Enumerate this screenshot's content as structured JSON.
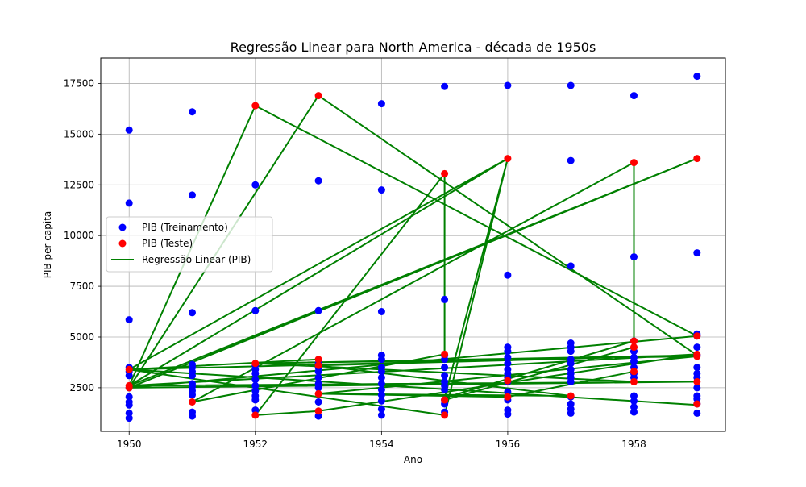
{
  "chart_data": {
    "type": "scatter",
    "title": "Regressão Linear para North America - década de 1950s",
    "xlabel": "Ano",
    "ylabel": "PIB per capita",
    "xlim": [
      1949.55,
      1959.45
    ],
    "ylim": [
      350,
      18750
    ],
    "xticks": [
      1950,
      1952,
      1954,
      1956,
      1958
    ],
    "yticks": [
      2500,
      5000,
      7500,
      10000,
      12500,
      15000,
      17500
    ],
    "grid": true,
    "legend_position": "center-left",
    "colors": {
      "train": "#0000ff",
      "test": "#ff0000",
      "regression": "#008000"
    },
    "series": [
      {
        "name": "PIB (Treinamento)",
        "kind": "scatter",
        "points": [
          [
            1950,
            15200
          ],
          [
            1950,
            11600
          ],
          [
            1950,
            5850
          ],
          [
            1950,
            3500
          ],
          [
            1950,
            3300
          ],
          [
            1950,
            3100
          ],
          [
            1950,
            2500
          ],
          [
            1950,
            2050
          ],
          [
            1950,
            1800
          ],
          [
            1950,
            1650
          ],
          [
            1950,
            1250
          ],
          [
            1950,
            1000
          ],
          [
            1951,
            16100
          ],
          [
            1951,
            12000
          ],
          [
            1951,
            6200
          ],
          [
            1951,
            3650
          ],
          [
            1951,
            3500
          ],
          [
            1951,
            3300
          ],
          [
            1951,
            3100
          ],
          [
            1951,
            2700
          ],
          [
            1951,
            2550
          ],
          [
            1951,
            2350
          ],
          [
            1951,
            2150
          ],
          [
            1951,
            1300
          ],
          [
            1951,
            1100
          ],
          [
            1952,
            12500
          ],
          [
            1952,
            6300
          ],
          [
            1952,
            3600
          ],
          [
            1952,
            3400
          ],
          [
            1952,
            3200
          ],
          [
            1952,
            2900
          ],
          [
            1952,
            2600
          ],
          [
            1952,
            2350
          ],
          [
            1952,
            2100
          ],
          [
            1952,
            1900
          ],
          [
            1952,
            1400
          ],
          [
            1953,
            12700
          ],
          [
            1953,
            6300
          ],
          [
            1953,
            3700
          ],
          [
            1953,
            3500
          ],
          [
            1953,
            3300
          ],
          [
            1953,
            3000
          ],
          [
            1953,
            2700
          ],
          [
            1953,
            2500
          ],
          [
            1953,
            1800
          ],
          [
            1953,
            1100
          ],
          [
            1954,
            16500
          ],
          [
            1954,
            12250
          ],
          [
            1954,
            6250
          ],
          [
            1954,
            4100
          ],
          [
            1954,
            3900
          ],
          [
            1954,
            3500
          ],
          [
            1954,
            3300
          ],
          [
            1954,
            3000
          ],
          [
            1954,
            2700
          ],
          [
            1954,
            2400
          ],
          [
            1954,
            2150
          ],
          [
            1954,
            1850
          ],
          [
            1954,
            1450
          ],
          [
            1954,
            1150
          ],
          [
            1955,
            17350
          ],
          [
            1955,
            6850
          ],
          [
            1955,
            4100
          ],
          [
            1955,
            3900
          ],
          [
            1955,
            3500
          ],
          [
            1955,
            3100
          ],
          [
            1955,
            2800
          ],
          [
            1955,
            2600
          ],
          [
            1955,
            2400
          ],
          [
            1955,
            1900
          ],
          [
            1955,
            1700
          ],
          [
            1955,
            1300
          ],
          [
            1956,
            17400
          ],
          [
            1956,
            8050
          ],
          [
            1956,
            4500
          ],
          [
            1956,
            4300
          ],
          [
            1956,
            4000
          ],
          [
            1956,
            3700
          ],
          [
            1956,
            3400
          ],
          [
            1956,
            3200
          ],
          [
            1956,
            3000
          ],
          [
            1956,
            2800
          ],
          [
            1956,
            2300
          ],
          [
            1956,
            1900
          ],
          [
            1956,
            1400
          ],
          [
            1956,
            1200
          ],
          [
            1957,
            17400
          ],
          [
            1957,
            13700
          ],
          [
            1957,
            8500
          ],
          [
            1957,
            4700
          ],
          [
            1957,
            4500
          ],
          [
            1957,
            4300
          ],
          [
            1957,
            3900
          ],
          [
            1957,
            3700
          ],
          [
            1957,
            3400
          ],
          [
            1957,
            3200
          ],
          [
            1957,
            3000
          ],
          [
            1957,
            2800
          ],
          [
            1957,
            2050
          ],
          [
            1957,
            1700
          ],
          [
            1957,
            1450
          ],
          [
            1957,
            1250
          ],
          [
            1958,
            16900
          ],
          [
            1958,
            8950
          ],
          [
            1958,
            4800
          ],
          [
            1958,
            4300
          ],
          [
            1958,
            4000
          ],
          [
            1958,
            3800
          ],
          [
            1958,
            3500
          ],
          [
            1958,
            3200
          ],
          [
            1958,
            3000
          ],
          [
            1958,
            2100
          ],
          [
            1958,
            1850
          ],
          [
            1958,
            1550
          ],
          [
            1958,
            1300
          ],
          [
            1959,
            17850
          ],
          [
            1959,
            9150
          ],
          [
            1959,
            5150
          ],
          [
            1959,
            5050
          ],
          [
            1959,
            4500
          ],
          [
            1959,
            4100
          ],
          [
            1959,
            3500
          ],
          [
            1959,
            3200
          ],
          [
            1959,
            3000
          ],
          [
            1959,
            2500
          ],
          [
            1959,
            2100
          ],
          [
            1959,
            1950
          ],
          [
            1959,
            1700
          ],
          [
            1959,
            1250
          ]
        ]
      },
      {
        "name": "PIB (Teste)",
        "kind": "scatter",
        "points": [
          [
            1950,
            3400
          ],
          [
            1950,
            2600
          ],
          [
            1950,
            2500
          ],
          [
            1951,
            1800
          ],
          [
            1952,
            16400
          ],
          [
            1952,
            3700
          ],
          [
            1952,
            1150
          ],
          [
            1953,
            16900
          ],
          [
            1953,
            3900
          ],
          [
            1953,
            3600
          ],
          [
            1953,
            2200
          ],
          [
            1953,
            1350
          ],
          [
            1955,
            13050
          ],
          [
            1955,
            4150
          ],
          [
            1955,
            1900
          ],
          [
            1955,
            1150
          ],
          [
            1956,
            13800
          ],
          [
            1956,
            2850
          ],
          [
            1956,
            2050
          ],
          [
            1957,
            2100
          ],
          [
            1958,
            13600
          ],
          [
            1958,
            4800
          ],
          [
            1958,
            4500
          ],
          [
            1958,
            3300
          ],
          [
            1958,
            2800
          ],
          [
            1959,
            13800
          ],
          [
            1959,
            5050
          ],
          [
            1959,
            4150
          ],
          [
            1959,
            4050
          ],
          [
            1959,
            2800
          ],
          [
            1959,
            1700
          ]
        ]
      },
      {
        "name": "Regressão Linear (PIB)",
        "kind": "line",
        "points": [
          [
            1950,
            2600
          ],
          [
            1952,
            16400
          ],
          [
            1959,
            5050
          ],
          [
            1950,
            2500
          ],
          [
            1953,
            16900
          ],
          [
            1959,
            4100
          ],
          [
            1950,
            3400
          ],
          [
            1955,
            1150
          ],
          [
            1956,
            13800
          ],
          [
            1955,
            2000
          ],
          [
            1958,
            4800
          ],
          [
            1958,
            13600
          ],
          [
            1951,
            1800
          ],
          [
            1955,
            4150
          ],
          [
            1955,
            13050
          ],
          [
            1952,
            1150
          ],
          [
            1953,
            1350
          ],
          [
            1959,
            4150
          ],
          [
            1950,
            2600
          ],
          [
            1959,
            2800
          ],
          [
            1950,
            2500
          ],
          [
            1959,
            13800
          ],
          [
            1950,
            2600
          ],
          [
            1956,
            13800
          ],
          [
            1950,
            3400
          ],
          [
            1959,
            1650
          ],
          [
            1950,
            3400
          ],
          [
            1953,
            3900
          ],
          [
            1953,
            2200
          ],
          [
            1959,
            4050
          ],
          [
            1952,
            3700
          ],
          [
            1958,
            2800
          ],
          [
            1952,
            3700
          ],
          [
            1959,
            4100
          ],
          [
            1953,
            3600
          ],
          [
            1957,
            2100
          ],
          [
            1953,
            2200
          ],
          [
            1956,
            2050
          ],
          [
            1958,
            3300
          ],
          [
            1958,
            4500
          ],
          [
            1955,
            1900
          ]
        ]
      }
    ]
  }
}
